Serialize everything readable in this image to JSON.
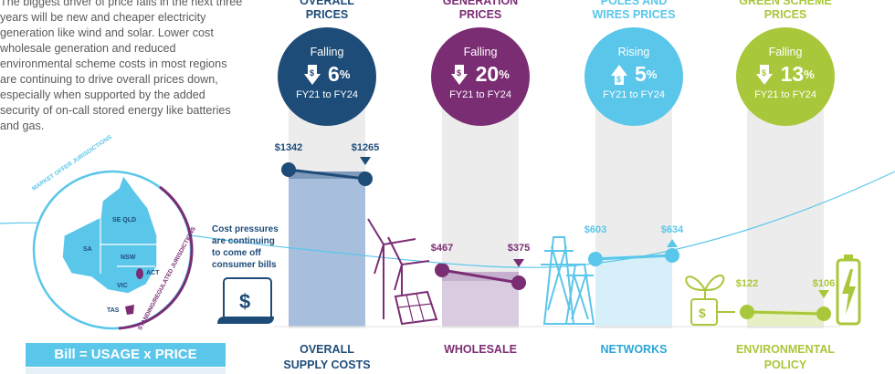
{
  "intro": "The biggest driver of price falls in the next three years will be new and cheaper electricity generation like wind and solar. Lower cost wholesale generation and reduced environmental scheme costs in most regions are continuing to drive overall prices down, especially when supported by the added security of on-call stored energy like batteries and gas.",
  "map": {
    "outer_label": "MARKET OFFER JURISDICTIONS",
    "inner_label": "STANDING/REGULATED JURISDICTIONS",
    "states": {
      "seqld": "SE QLD",
      "sa": "SA",
      "nsw": "NSW",
      "act": "ACT",
      "vic": "VIC",
      "tas": "TAS"
    }
  },
  "bill_formula": "Bill = USAGE x PRICE",
  "cost_pressures": "Cost pressures are continuing to come off consumer bills",
  "columns": [
    {
      "header1": "OVERALL",
      "header2": "PRICES",
      "direction": "Falling",
      "trend": "down",
      "pct": "6",
      "pct_sign": "%",
      "period": "FY21 to FY24",
      "start": "$1342",
      "end": "$1265",
      "cat1": "OVERALL",
      "cat2": "SUPPLY COSTS",
      "color": "#1e4c78"
    },
    {
      "header1": "GENERATION",
      "header2": "PRICES",
      "direction": "Falling",
      "trend": "down",
      "pct": "20",
      "pct_sign": "%",
      "period": "FY21 to FY24",
      "start": "$467",
      "end": "$375",
      "cat1": "WHOLESALE",
      "cat2": "",
      "color": "#7b2d74"
    },
    {
      "header1": "POLES AND",
      "header2": "WIRES PRICES",
      "direction": "Rising",
      "trend": "up",
      "pct": "5",
      "pct_sign": "%",
      "period": "FY21 to FY24",
      "start": "$603",
      "end": "$634",
      "cat1": "NETWORKS",
      "cat2": "",
      "color": "#5ac6ea"
    },
    {
      "header1": "GREEN SCHEME",
      "header2": "PRICES",
      "direction": "Falling",
      "trend": "down",
      "pct": "13",
      "pct_sign": "%",
      "period": "FY21 to FY24",
      "start": "$122",
      "end": "$106",
      "cat1": "ENVIRONMENTAL",
      "cat2": "POLICY",
      "color": "#a9c73a"
    }
  ]
}
